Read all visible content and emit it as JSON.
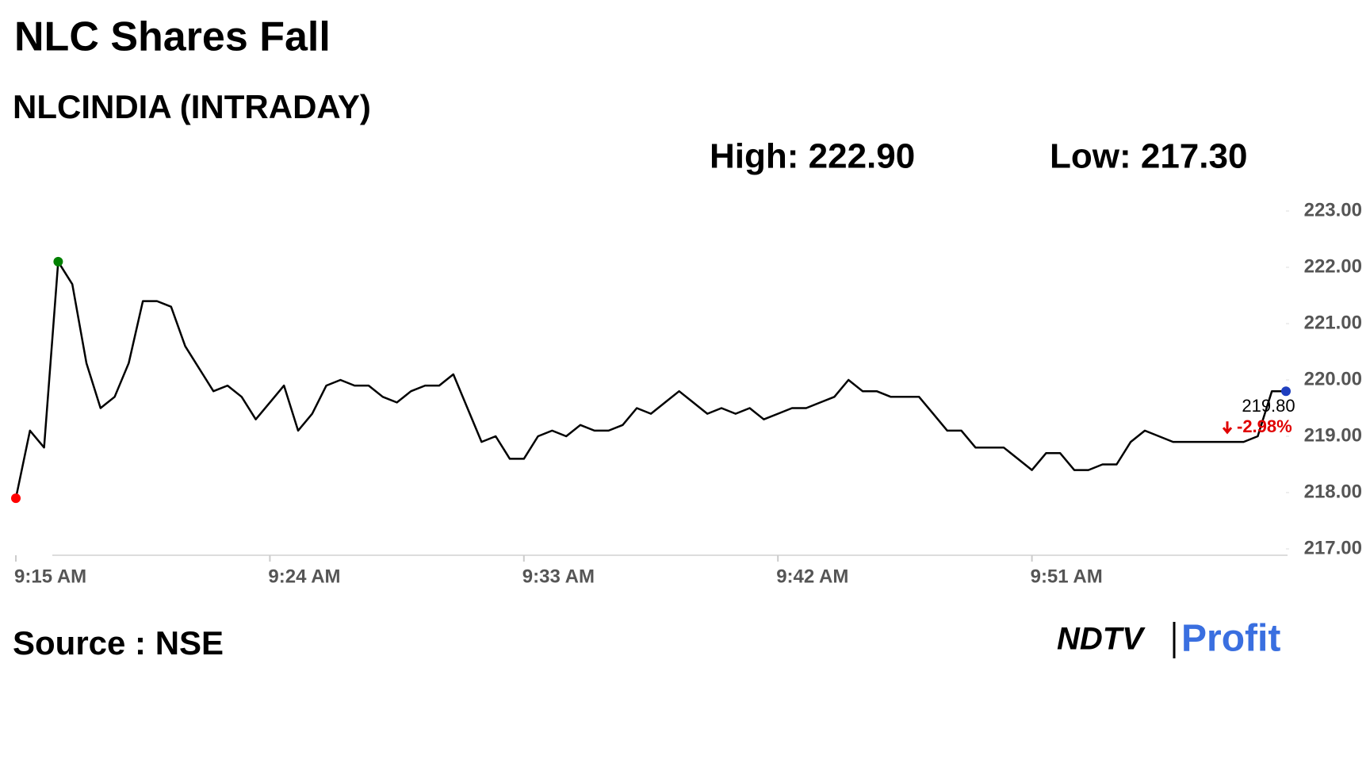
{
  "chart_data": {
    "type": "line",
    "title": "NLC Shares Fall",
    "subtitle": "NLCINDIA (INTRADAY)",
    "high_label": "High: 222.90",
    "low_label": "Low: 217.30",
    "last_label": "219.80",
    "change_label": "-2.98%",
    "source": "Source : NSE",
    "brand": "NDTV",
    "brand_suffix": "Profit",
    "color": "#000000",
    "start_color": "#ff0000",
    "high_color": "#008000",
    "end_color": "#1f3fbf",
    "change_color": "#e00000",
    "ylim": [
      217,
      223
    ],
    "yticks": [
      {
        "value": 217,
        "label": "217.00"
      },
      {
        "value": 218,
        "label": "218.00"
      },
      {
        "value": 219,
        "label": "219.00"
      },
      {
        "value": 220,
        "label": "220.00"
      },
      {
        "value": 221,
        "label": "221.00"
      },
      {
        "value": 222,
        "label": "222.00"
      },
      {
        "value": 223,
        "label": "223.00"
      }
    ],
    "categories": [
      "9:15 AM",
      null,
      null,
      null,
      null,
      null,
      null,
      null,
      null,
      null,
      null,
      null,
      null,
      null,
      null,
      null,
      null,
      null,
      "9:24 AM",
      null,
      null,
      null,
      null,
      null,
      null,
      null,
      null,
      null,
      null,
      null,
      null,
      null,
      null,
      null,
      null,
      null,
      "9:33 AM",
      null,
      null,
      null,
      null,
      null,
      null,
      null,
      null,
      null,
      null,
      null,
      null,
      null,
      null,
      null,
      null,
      null,
      "9:42 AM",
      null,
      null,
      null,
      null,
      null,
      null,
      null,
      null,
      null,
      null,
      null,
      null,
      null,
      null,
      null,
      null,
      null,
      "9:51 AM",
      null,
      null,
      null,
      null,
      null,
      null,
      null,
      null,
      null,
      null,
      null,
      null,
      null,
      null,
      null,
      null,
      null,
      null
    ],
    "values": [
      217.9,
      219.1,
      218.8,
      222.1,
      221.7,
      220.3,
      219.5,
      219.7,
      220.3,
      221.4,
      221.4,
      221.3,
      220.6,
      220.2,
      219.8,
      219.9,
      219.7,
      219.3,
      219.6,
      219.9,
      219.1,
      219.4,
      219.9,
      220.0,
      219.9,
      219.9,
      219.7,
      219.6,
      219.8,
      219.9,
      219.9,
      220.1,
      219.5,
      218.9,
      219.0,
      218.6,
      218.6,
      219.0,
      219.1,
      219.0,
      219.2,
      219.1,
      219.1,
      219.2,
      219.5,
      219.4,
      219.6,
      219.8,
      219.6,
      219.4,
      219.5,
      219.4,
      219.5,
      219.3,
      219.4,
      219.5,
      219.5,
      219.6,
      219.7,
      220.0,
      219.8,
      219.8,
      219.7,
      219.7,
      219.7,
      219.4,
      219.1,
      219.1,
      218.8,
      218.8,
      218.8,
      218.6,
      218.4,
      218.7,
      218.7,
      218.4,
      218.4,
      218.5,
      218.5,
      218.9,
      219.1,
      219.0,
      218.9,
      218.9,
      218.9,
      218.9,
      218.9,
      218.9,
      219.0,
      219.8,
      219.8
    ]
  }
}
